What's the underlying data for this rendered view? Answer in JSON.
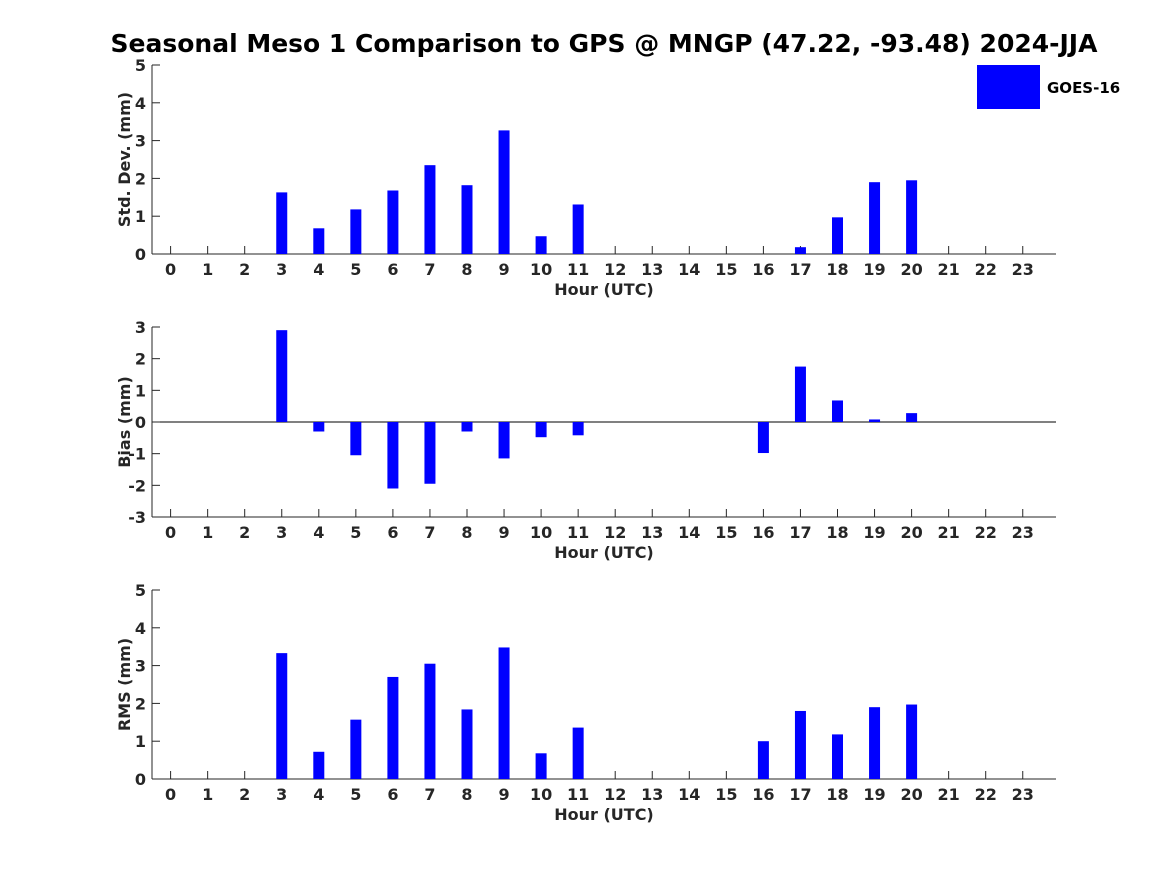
{
  "figure_title": "Seasonal Meso 1 Comparison to GPS @ MNGP (47.22, -93.48) 2024-JJA",
  "legend": {
    "label": "GOES-16",
    "color": "#0000ff"
  },
  "chart_data": [
    {
      "type": "bar",
      "ylabel": "Std. Dev. (mm)",
      "xlabel": "Hour (UTC)",
      "ylim": [
        0,
        5
      ],
      "yticks": [
        0,
        1,
        2,
        3,
        4,
        5
      ],
      "categories": [
        "0",
        "1",
        "2",
        "3",
        "4",
        "5",
        "6",
        "7",
        "8",
        "9",
        "10",
        "11",
        "12",
        "13",
        "14",
        "15",
        "16",
        "17",
        "18",
        "19",
        "20",
        "21",
        "22",
        "23"
      ],
      "series": [
        {
          "name": "GOES-16",
          "color": "#0000ff",
          "values": [
            null,
            null,
            null,
            1.63,
            0.68,
            1.18,
            1.68,
            2.35,
            1.82,
            3.27,
            0.47,
            1.31,
            null,
            null,
            null,
            null,
            null,
            0.18,
            0.97,
            1.9,
            1.95,
            null,
            null,
            null
          ]
        }
      ],
      "grid": false,
      "legend_position": "top-right"
    },
    {
      "type": "bar",
      "ylabel": "Bias (mm)",
      "xlabel": "Hour (UTC)",
      "ylim": [
        -3,
        3
      ],
      "yticks": [
        -3,
        -2,
        -1,
        0,
        1,
        2,
        3
      ],
      "categories": [
        "0",
        "1",
        "2",
        "3",
        "4",
        "5",
        "6",
        "7",
        "8",
        "9",
        "10",
        "11",
        "12",
        "13",
        "14",
        "15",
        "16",
        "17",
        "18",
        "19",
        "20",
        "21",
        "22",
        "23"
      ],
      "series": [
        {
          "name": "GOES-16",
          "color": "#0000ff",
          "values": [
            null,
            null,
            null,
            2.9,
            -0.3,
            -1.05,
            -2.1,
            -1.95,
            -0.3,
            -1.15,
            -0.48,
            -0.42,
            null,
            null,
            null,
            null,
            -0.98,
            1.75,
            0.68,
            0.08,
            0.28,
            null,
            null,
            null
          ]
        }
      ],
      "grid": false,
      "zero_line": true
    },
    {
      "type": "bar",
      "ylabel": "RMS (mm)",
      "xlabel": "Hour (UTC)",
      "ylim": [
        0,
        5
      ],
      "yticks": [
        0,
        1,
        2,
        3,
        4,
        5
      ],
      "categories": [
        "0",
        "1",
        "2",
        "3",
        "4",
        "5",
        "6",
        "7",
        "8",
        "9",
        "10",
        "11",
        "12",
        "13",
        "14",
        "15",
        "16",
        "17",
        "18",
        "19",
        "20",
        "21",
        "22",
        "23"
      ],
      "series": [
        {
          "name": "GOES-16",
          "color": "#0000ff",
          "values": [
            null,
            null,
            null,
            3.33,
            0.72,
            1.57,
            2.7,
            3.05,
            1.84,
            3.48,
            0.68,
            1.36,
            null,
            null,
            null,
            null,
            1.0,
            1.8,
            1.18,
            1.9,
            1.97,
            null,
            null,
            null
          ]
        }
      ],
      "grid": false
    }
  ]
}
